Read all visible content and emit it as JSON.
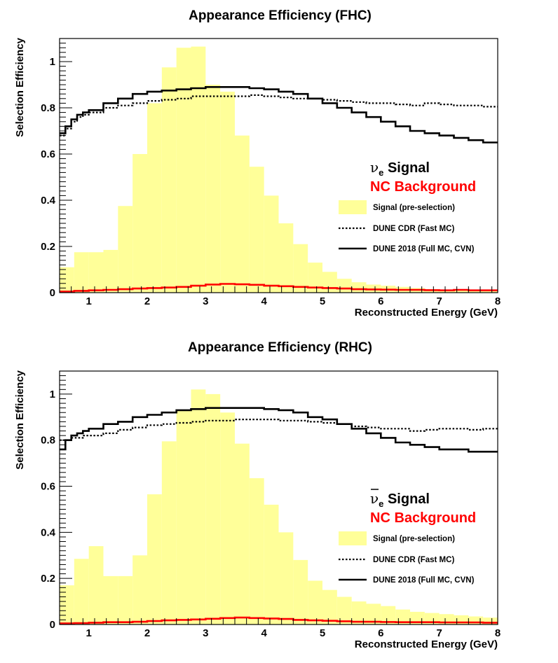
{
  "colors": {
    "signal_fill": "#ffff99",
    "nc_background": "#ff0000",
    "line": "#000000"
  },
  "chart_data": [
    {
      "type": "histogram",
      "title": "Appearance Efficiency (FHC)",
      "xlabel": "Reconstructed Energy (GeV)",
      "ylabel": "Selection Efficiency",
      "xlim": [
        0.5,
        8.0
      ],
      "ylim": [
        0,
        1.1
      ],
      "xticks": [
        1,
        2,
        3,
        4,
        5,
        6,
        7,
        8
      ],
      "yticks": [
        0,
        0.2,
        0.4,
        0.6,
        0.8,
        1
      ],
      "legend": {
        "position": "right",
        "signal_label": "ν",
        "signal_sub": "e",
        "signal_label_rest": " Signal",
        "signal_bar": false,
        "background_label": "NC Background",
        "entries": [
          {
            "label": "Signal (pre-selection)",
            "style": "fill"
          },
          {
            "label": "DUNE CDR (Fast MC)",
            "style": "dotted"
          },
          {
            "label": "DUNE 2018 (Full MC, CVN)",
            "style": "solid"
          }
        ]
      },
      "signal_hist": {
        "bin_edges": [
          0.5,
          0.75,
          1.0,
          1.25,
          1.5,
          1.75,
          2.0,
          2.25,
          2.5,
          2.75,
          3.0,
          3.25,
          3.5,
          3.75,
          4.0,
          4.25,
          4.5,
          4.75,
          5.0,
          5.25,
          5.5,
          5.75,
          6.0,
          6.25,
          6.5,
          6.75,
          7.0,
          7.25,
          7.5,
          7.75,
          8.0
        ],
        "values": [
          0.11,
          0.175,
          0.175,
          0.185,
          0.375,
          0.6,
          0.82,
          0.975,
          1.06,
          1.065,
          0.9,
          0.87,
          0.68,
          0.545,
          0.42,
          0.3,
          0.21,
          0.13,
          0.09,
          0.06,
          0.045,
          0.035,
          0.03,
          0.025,
          0.02,
          0.015,
          0.012,
          0.012,
          0.01,
          0.01
        ]
      },
      "series": [
        {
          "name": "DUNE CDR (Fast MC)",
          "style": "dotted",
          "x": [
            0.5,
            0.6,
            0.7,
            0.8,
            0.9,
            1.0,
            1.25,
            1.5,
            1.75,
            2.0,
            2.25,
            2.5,
            2.75,
            3.0,
            3.25,
            3.5,
            3.75,
            4.0,
            4.25,
            4.5,
            4.75,
            5.0,
            5.25,
            5.5,
            5.75,
            6.0,
            6.25,
            6.5,
            6.75,
            7.0,
            7.25,
            7.5,
            7.75,
            8.0
          ],
          "y": [
            0.68,
            0.71,
            0.74,
            0.76,
            0.77,
            0.78,
            0.8,
            0.81,
            0.82,
            0.83,
            0.835,
            0.84,
            0.85,
            0.85,
            0.85,
            0.85,
            0.855,
            0.85,
            0.845,
            0.84,
            0.84,
            0.835,
            0.83,
            0.825,
            0.82,
            0.82,
            0.815,
            0.81,
            0.82,
            0.815,
            0.81,
            0.81,
            0.805,
            0.8
          ]
        },
        {
          "name": "DUNE 2018 (Full MC, CVN)",
          "style": "solid",
          "x": [
            0.5,
            0.6,
            0.7,
            0.8,
            0.9,
            1.0,
            1.25,
            1.5,
            1.75,
            2.0,
            2.25,
            2.5,
            2.75,
            3.0,
            3.25,
            3.5,
            3.75,
            4.0,
            4.25,
            4.5,
            4.75,
            5.0,
            5.25,
            5.5,
            5.75,
            6.0,
            6.25,
            6.5,
            6.75,
            7.0,
            7.25,
            7.5,
            7.75,
            8.0
          ],
          "y": [
            0.69,
            0.72,
            0.75,
            0.77,
            0.78,
            0.79,
            0.82,
            0.84,
            0.86,
            0.87,
            0.875,
            0.88,
            0.885,
            0.89,
            0.89,
            0.89,
            0.885,
            0.88,
            0.87,
            0.86,
            0.84,
            0.82,
            0.8,
            0.78,
            0.76,
            0.74,
            0.72,
            0.7,
            0.69,
            0.68,
            0.67,
            0.66,
            0.65,
            0.65
          ]
        },
        {
          "name": "NC Background",
          "style": "solid-red",
          "x": [
            0.5,
            0.75,
            1.0,
            1.25,
            1.5,
            1.75,
            2.0,
            2.25,
            2.5,
            2.75,
            3.0,
            3.25,
            3.5,
            3.75,
            4.0,
            4.25,
            4.5,
            4.75,
            5.0,
            5.25,
            5.5,
            5.75,
            6.0,
            6.25,
            6.5,
            6.75,
            7.0,
            7.25,
            7.5,
            7.75,
            8.0
          ],
          "y": [
            0.005,
            0.008,
            0.01,
            0.012,
            0.015,
            0.018,
            0.02,
            0.022,
            0.025,
            0.03,
            0.035,
            0.038,
            0.036,
            0.034,
            0.03,
            0.028,
            0.025,
            0.022,
            0.02,
            0.018,
            0.015,
            0.014,
            0.013,
            0.012,
            0.012,
            0.011,
            0.01,
            0.012,
            0.01,
            0.01,
            0.01
          ]
        }
      ]
    },
    {
      "type": "histogram",
      "title": "Appearance Efficiency (RHC)",
      "xlabel": "Reconstructed Energy (GeV)",
      "ylabel": "Selection Efficiency",
      "xlim": [
        0.5,
        8.0
      ],
      "ylim": [
        0,
        1.1
      ],
      "xticks": [
        1,
        2,
        3,
        4,
        5,
        6,
        7,
        8
      ],
      "yticks": [
        0,
        0.2,
        0.4,
        0.6,
        0.8,
        1
      ],
      "legend": {
        "position": "right",
        "signal_label": "ν",
        "signal_sub": "e",
        "signal_label_rest": " Signal",
        "signal_bar": true,
        "background_label": "NC Background",
        "entries": [
          {
            "label": "Signal (pre-selection)",
            "style": "fill"
          },
          {
            "label": "DUNE CDR (Fast MC)",
            "style": "dotted"
          },
          {
            "label": "DUNE 2018 (Full MC, CVN)",
            "style": "solid"
          }
        ]
      },
      "signal_hist": {
        "bin_edges": [
          0.5,
          0.75,
          1.0,
          1.25,
          1.5,
          1.75,
          2.0,
          2.25,
          2.5,
          2.75,
          3.0,
          3.25,
          3.5,
          3.75,
          4.0,
          4.25,
          4.5,
          4.75,
          5.0,
          5.25,
          5.5,
          5.75,
          6.0,
          6.25,
          6.5,
          6.75,
          7.0,
          7.25,
          7.5,
          7.75,
          8.0
        ],
        "values": [
          0.17,
          0.285,
          0.34,
          0.21,
          0.21,
          0.3,
          0.565,
          0.795,
          0.93,
          1.02,
          1.0,
          0.92,
          0.785,
          0.635,
          0.52,
          0.4,
          0.28,
          0.19,
          0.15,
          0.12,
          0.1,
          0.09,
          0.08,
          0.065,
          0.055,
          0.05,
          0.045,
          0.04,
          0.035,
          0.03
        ]
      },
      "series": [
        {
          "name": "DUNE CDR (Fast MC)",
          "style": "dotted",
          "x": [
            0.5,
            0.6,
            0.7,
            0.8,
            0.9,
            1.0,
            1.25,
            1.5,
            1.75,
            2.0,
            2.25,
            2.5,
            2.75,
            3.0,
            3.25,
            3.5,
            3.75,
            4.0,
            4.25,
            4.5,
            4.75,
            5.0,
            5.25,
            5.5,
            5.75,
            6.0,
            6.25,
            6.5,
            6.75,
            7.0,
            7.25,
            7.5,
            7.75,
            8.0
          ],
          "y": [
            0.8,
            0.8,
            0.81,
            0.81,
            0.82,
            0.82,
            0.83,
            0.845,
            0.855,
            0.865,
            0.87,
            0.875,
            0.88,
            0.885,
            0.885,
            0.89,
            0.89,
            0.89,
            0.885,
            0.885,
            0.88,
            0.875,
            0.87,
            0.86,
            0.855,
            0.85,
            0.85,
            0.84,
            0.845,
            0.85,
            0.85,
            0.845,
            0.85,
            0.86
          ]
        },
        {
          "name": "DUNE 2018 (Full MC, CVN)",
          "style": "solid",
          "x": [
            0.5,
            0.6,
            0.7,
            0.8,
            0.9,
            1.0,
            1.25,
            1.5,
            1.75,
            2.0,
            2.25,
            2.5,
            2.75,
            3.0,
            3.25,
            3.5,
            3.75,
            4.0,
            4.25,
            4.5,
            4.75,
            5.0,
            5.25,
            5.5,
            5.75,
            6.0,
            6.25,
            6.5,
            6.75,
            7.0,
            7.25,
            7.5,
            7.75,
            8.0
          ],
          "y": [
            0.76,
            0.8,
            0.82,
            0.83,
            0.84,
            0.85,
            0.87,
            0.88,
            0.9,
            0.91,
            0.92,
            0.93,
            0.935,
            0.94,
            0.94,
            0.94,
            0.94,
            0.935,
            0.93,
            0.92,
            0.9,
            0.89,
            0.87,
            0.85,
            0.83,
            0.81,
            0.79,
            0.78,
            0.77,
            0.76,
            0.76,
            0.75,
            0.75,
            0.75
          ]
        },
        {
          "name": "NC Background",
          "style": "solid-red",
          "x": [
            0.5,
            0.75,
            1.0,
            1.25,
            1.5,
            1.75,
            2.0,
            2.25,
            2.5,
            2.75,
            3.0,
            3.25,
            3.5,
            3.75,
            4.0,
            4.25,
            4.5,
            4.75,
            5.0,
            5.25,
            5.5,
            5.75,
            6.0,
            6.25,
            6.5,
            6.75,
            7.0,
            7.25,
            7.5,
            7.75,
            8.0
          ],
          "y": [
            0.005,
            0.006,
            0.008,
            0.01,
            0.01,
            0.012,
            0.015,
            0.018,
            0.02,
            0.022,
            0.025,
            0.028,
            0.03,
            0.028,
            0.026,
            0.024,
            0.02,
            0.018,
            0.016,
            0.014,
            0.012,
            0.012,
            0.011,
            0.01,
            0.01,
            0.01,
            0.009,
            0.009,
            0.009,
            0.008,
            0.008
          ]
        }
      ]
    }
  ]
}
